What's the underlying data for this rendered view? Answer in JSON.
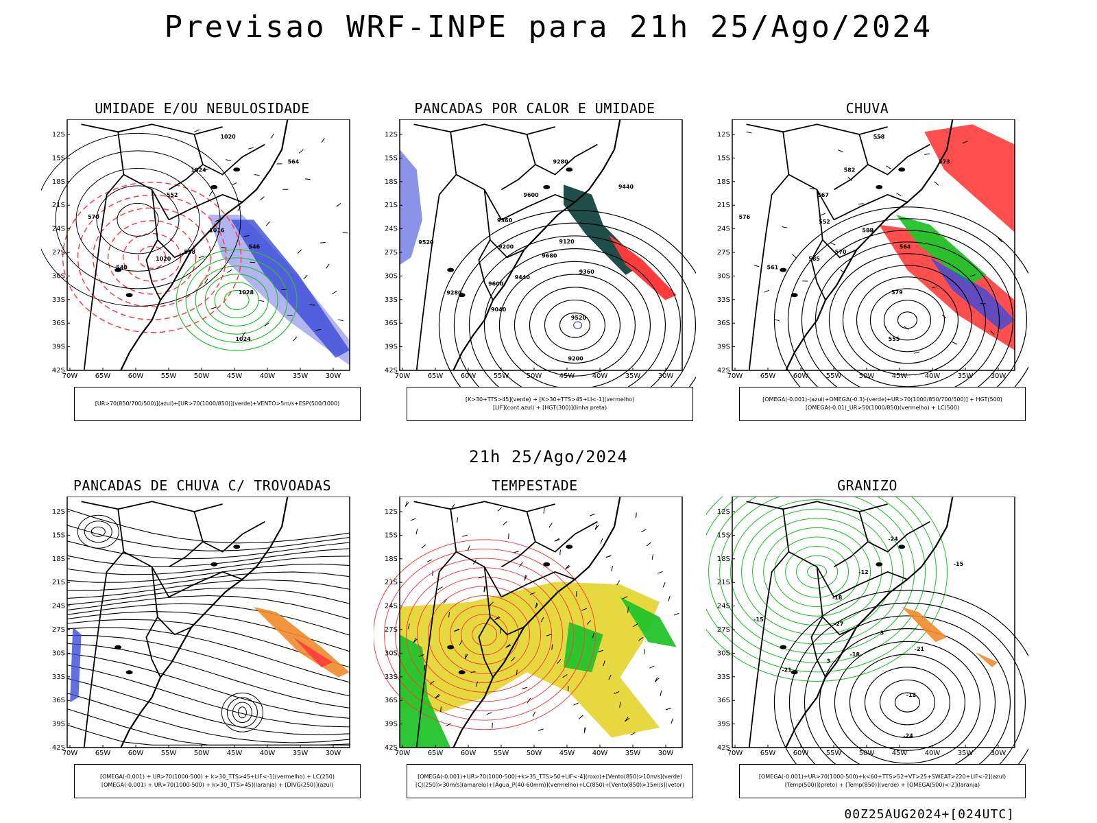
{
  "title": "Previsao WRF-INPE  para 21h 25/Ago/2024",
  "middle_label": "21h 25/Ago/2024",
  "footer_stamp": "00Z25AUG2024+[024UTC]",
  "colors": {
    "blue": "#3b4bd8",
    "light_blue": "#a8acf0",
    "green": "#22c42a",
    "red": "#ff3b3b",
    "yellow": "#e3d42a",
    "orange": "#f08a2a",
    "teal": "#1f4d4a",
    "purple": "#3f2aa8"
  },
  "chart_data": [
    {
      "type": "map",
      "title": "UMIDADE E/OU NEBULOSIDADE",
      "xticks": [
        "70W",
        "65W",
        "60W",
        "55W",
        "50W",
        "45W",
        "40W",
        "35W",
        "30W"
      ],
      "yticks": [
        "12S",
        "15S",
        "18S",
        "21S",
        "24S",
        "27S",
        "30S",
        "33S",
        "36S",
        "39S",
        "42S"
      ],
      "legend": [
        "[UR>70(850/700/500)](azul)+[UR>70(1000/850)](verde)+VENTO>5m/s+ESP(500/1000)"
      ],
      "contour_labels": [
        "1016",
        "1020",
        "1024",
        "1028",
        "570",
        "564",
        "558",
        "552",
        "546",
        "540",
        "1020",
        "1024"
      ]
    },
    {
      "type": "map",
      "title": "PANCADAS POR CALOR E UMIDADE",
      "xticks": [
        "70W",
        "65W",
        "60W",
        "55W",
        "50W",
        "45W",
        "40W",
        "35W",
        "30W"
      ],
      "yticks": [
        "12S",
        "15S",
        "18S",
        "21S",
        "24S",
        "27S",
        "30S",
        "33S",
        "36S",
        "39S",
        "42S"
      ],
      "legend": [
        "[K>30+TTS>45](verde) + [K>30+TTS>45+LI<-1](vermelho)",
        "[LIF](cont.azul) + [HGT(300)](linha preta)"
      ],
      "contour_labels": [
        "9680",
        "9600",
        "9600",
        "9520",
        "9520",
        "9440",
        "9440",
        "9360",
        "9360",
        "9280",
        "9280",
        "9200",
        "9200",
        "9120",
        "9040"
      ]
    },
    {
      "type": "map",
      "title": "CHUVA",
      "xticks": [
        "70W",
        "65W",
        "60W",
        "55W",
        "50W",
        "45W",
        "40W",
        "35W",
        "30W"
      ],
      "yticks": [
        "12S",
        "15S",
        "18S",
        "21S",
        "24S",
        "27S",
        "30S",
        "33S",
        "36S",
        "39S",
        "42S"
      ],
      "legend": [
        "[OMEGA(-0.001)-(azul)+OMEGA(-0.3)-(verde)+UR>70(1000/850/700/500)] + HGT(500)",
        "[OMEGA(-0.01)_UR>50(1000/850)(vermelho) + LC(500)"
      ],
      "contour_labels": [
        "588",
        "585",
        "582",
        "579",
        "576",
        "573",
        "570",
        "567",
        "564",
        "561",
        "558",
        "555",
        "552"
      ]
    },
    {
      "type": "map",
      "title": "PANCADAS DE CHUVA C/ TROVOADAS",
      "xticks": [
        "70W",
        "65W",
        "60W",
        "55W",
        "50W",
        "45W",
        "40W",
        "35W",
        "30W"
      ],
      "yticks": [
        "12S",
        "15S",
        "18S",
        "21S",
        "24S",
        "27S",
        "30S",
        "33S",
        "36S",
        "39S",
        "42S"
      ],
      "legend": [
        "[OMEGA(-0.001) + UR>70(1000-500) + k>30_TTS>45+LIF<-1](vermelho) + LC(250)",
        "[OMEGA(-0.001) + UR>70(1000-500) + k>30_TTS>45](laranja) + [DIVG(250)](azul)"
      ]
    },
    {
      "type": "map",
      "title": "TEMPESTADE",
      "xticks": [
        "70W",
        "65W",
        "60W",
        "55W",
        "50W",
        "45W",
        "40W",
        "35W",
        "30W"
      ],
      "yticks": [
        "12S",
        "15S",
        "18S",
        "21S",
        "24S",
        "27S",
        "30S",
        "33S",
        "36S",
        "39S",
        "42S"
      ],
      "legend": [
        "[OMEGA(-0.001)+UR>70(1000-500)+k>35_TTS>50+LIF<-4](roxo)+[Vento(850)>10m/s](verde)",
        "[CJ(250)>30m/s](amarelo)+[Agua_P(40-60mm)](vermelho)+LC(850)+[Vento(850)>15m/s](vetor)"
      ]
    },
    {
      "type": "map",
      "title": "GRANIZO",
      "xticks": [
        "70W",
        "65W",
        "60W",
        "55W",
        "50W",
        "45W",
        "40W",
        "35W",
        "30W"
      ],
      "yticks": [
        "12S",
        "15S",
        "18S",
        "21S",
        "24S",
        "27S",
        "30S",
        "33S",
        "36S",
        "39S",
        "42S"
      ],
      "legend": [
        "[OMEGA(-0.001)+UR>70(1000-500)+k<60+TTS>52+VT>25+SWEAT>220+LIF<-2](azul)",
        "[Temp(500)](preto) + [Temp(850)](verde) + [OMEGA(500)<-2](laranja)"
      ],
      "contour_labels": [
        "3",
        "3",
        "-12",
        "-12",
        "-15",
        "-15",
        "-18",
        "-18",
        "-21",
        "-21",
        "-24",
        "-24",
        "-27"
      ]
    }
  ]
}
